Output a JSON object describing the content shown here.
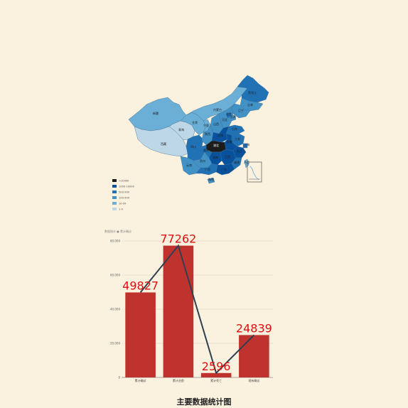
{
  "map": {
    "provinces": [
      {
        "name": "新疆",
        "level": 2
      },
      {
        "name": "西藏",
        "level": 1
      },
      {
        "name": "青海",
        "level": 1
      },
      {
        "name": "甘肃",
        "level": 2
      },
      {
        "name": "内蒙古",
        "level": 2
      },
      {
        "name": "黑龙江",
        "level": 4
      },
      {
        "name": "吉林",
        "level": 3
      },
      {
        "name": "辽宁",
        "level": 3
      },
      {
        "name": "四川",
        "level": 4
      },
      {
        "name": "湖北",
        "level": 6
      },
      {
        "name": "广东",
        "level": 5
      },
      {
        "name": "云南",
        "level": 3
      },
      {
        "name": "浙江",
        "level": 5
      },
      {
        "name": "湖南",
        "level": 5
      },
      {
        "name": "江西",
        "level": 5
      },
      {
        "name": "河南",
        "level": 5
      },
      {
        "name": "安徽",
        "level": 5
      },
      {
        "name": "山东",
        "level": 4
      },
      {
        "name": "江苏",
        "level": 4
      },
      {
        "name": "广西",
        "level": 4
      },
      {
        "name": "海南",
        "level": 3
      },
      {
        "name": "贵州",
        "level": 3
      },
      {
        "name": "陕西",
        "level": 3
      },
      {
        "name": "宁夏",
        "level": 2
      },
      {
        "name": "山西",
        "level": 3
      },
      {
        "name": "河北",
        "level": 3
      },
      {
        "name": "北京",
        "level": 4
      },
      {
        "name": "天津",
        "level": 3
      },
      {
        "name": "重庆",
        "level": 4
      },
      {
        "name": "福建",
        "level": 4
      },
      {
        "name": "上海",
        "level": 4
      },
      {
        "name": "台湾",
        "level": 2
      }
    ],
    "legend": [
      {
        "label": ">10000",
        "color": "#1c1c1c"
      },
      {
        "label": "1000-10000",
        "color": "#08519c"
      },
      {
        "label": "500-999",
        "color": "#2171b5"
      },
      {
        "label": "100-499",
        "color": "#4292c6"
      },
      {
        "label": "10-99",
        "color": "#6baed6"
      },
      {
        "label": "1-9",
        "color": "#bdd7e7"
      }
    ],
    "level_colors": [
      "#faf1de",
      "#bdd7e7",
      "#6baed6",
      "#4292c6",
      "#2171b5",
      "#08519c",
      "#1c1c1c"
    ]
  },
  "chart_data": {
    "type": "bar",
    "title": "主要数据统计图",
    "categories": [
      "累计确诊",
      "累计治愈",
      "累计死亡",
      "现有确诊"
    ],
    "values": [
      49827,
      77262,
      2596,
      24839
    ],
    "overlay_line": true,
    "ylim": [
      0,
      80000
    ],
    "yticks": [
      0,
      20000,
      40000,
      60000,
      80000
    ],
    "bar_color": "#c0322d",
    "line_color": "#2f4050",
    "label_color": "#e01010",
    "legend_text": "数据统计 ● 累计确诊"
  }
}
